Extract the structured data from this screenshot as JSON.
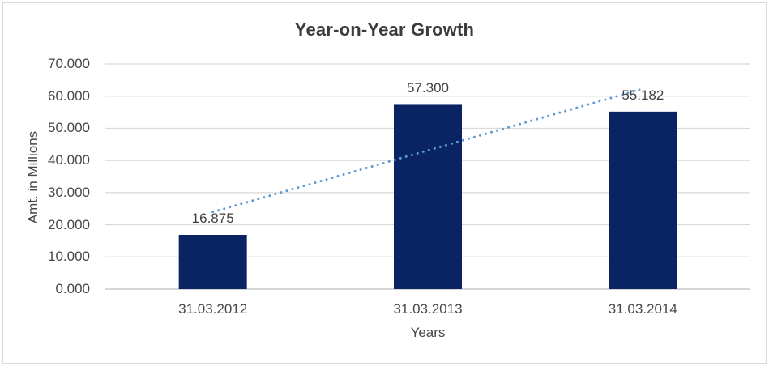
{
  "chart_data": {
    "type": "bar",
    "title": "Year-on-Year Growth",
    "xlabel": "Years",
    "ylabel": "Amt. in Millions",
    "categories": [
      "31.03.2012",
      "31.03.2013",
      "31.03.2014"
    ],
    "values": [
      16.875,
      57.3,
      55.182
    ],
    "data_labels": [
      "16.875",
      "57.300",
      "55.182"
    ],
    "y_ticks": [
      "0.000",
      "10.000",
      "20.000",
      "30.000",
      "40.000",
      "50.000",
      "60.000",
      "70.000"
    ],
    "ylim": [
      0,
      70
    ],
    "grid": true,
    "legend": "none",
    "bar_color": "#0a2463",
    "trendline": {
      "type": "linear",
      "style": "dotted",
      "color": "#5b9bd5",
      "endpoints": [
        23.97,
        62.27
      ]
    },
    "colors": {
      "gridline": "#d9d9d9",
      "axis_line": "#c9c9c9",
      "frame_border": "#d9d9d9",
      "title_text": "#3c3c3c",
      "axis_title_text": "#474747",
      "tick_label_text": "#474747",
      "data_label_text": "#404040",
      "background": "#ffffff"
    }
  }
}
